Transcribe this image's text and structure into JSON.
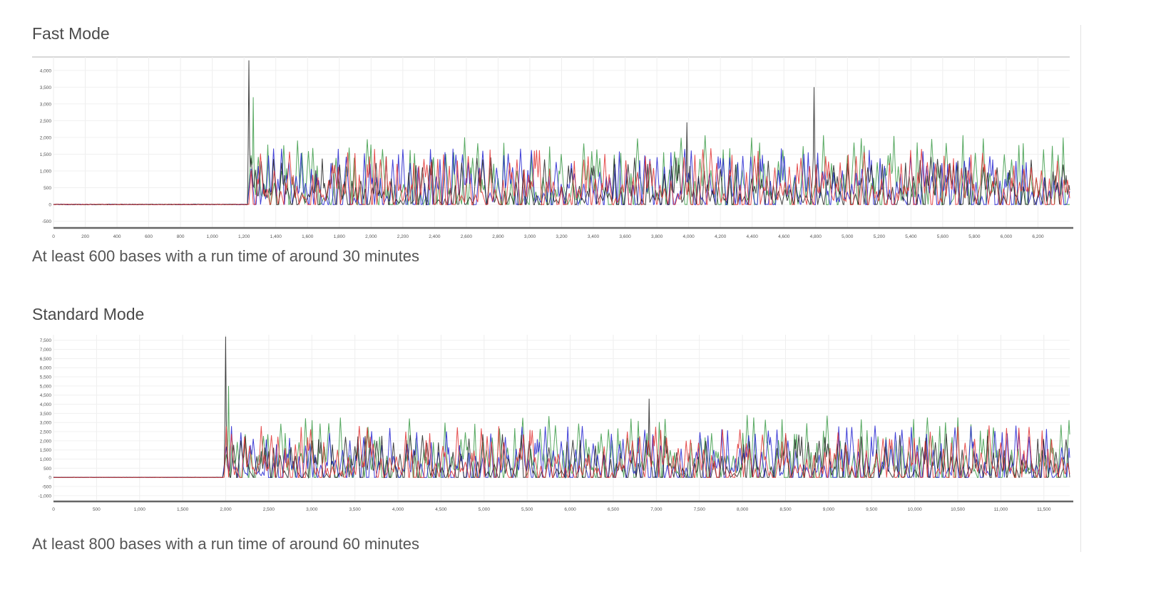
{
  "chart_data": [
    {
      "type": "line",
      "title": "Fast Mode",
      "caption": "At least 600 bases with a run time of around 30 minutes",
      "xlim": [
        0,
        6400
      ],
      "ylim": [
        -700,
        4400
      ],
      "xticks": [
        0,
        200,
        400,
        600,
        800,
        1000,
        1200,
        1400,
        1600,
        1800,
        2000,
        2200,
        2400,
        2600,
        2800,
        3000,
        3200,
        3400,
        3600,
        3800,
        4000,
        4200,
        4400,
        4600,
        4800,
        5000,
        5200,
        5400,
        5600,
        5800,
        6000,
        6200
      ],
      "yticks": [
        -500,
        0,
        500,
        1000,
        1500,
        2000,
        2500,
        3000,
        3500,
        4000
      ],
      "grid": true,
      "series_colors": [
        "#3a9a45",
        "#2020d0",
        "#222222",
        "#e03030"
      ],
      "signal_onset_x": 1240,
      "baseline_y": 0,
      "typical_peak_range": [
        500,
        1800
      ],
      "notable_peaks": [
        {
          "x": 1231,
          "y": 4300,
          "color": "#222222"
        },
        {
          "x": 1260,
          "y": 3200,
          "color": "#3a9a45"
        },
        {
          "x": 4790,
          "y": 3500,
          "color": "#222222"
        },
        {
          "x": 3990,
          "y": 2450,
          "color": "#222222"
        }
      ]
    },
    {
      "type": "line",
      "title": "Standard Mode",
      "caption": "At least 800 bases with a run time of around 60 minutes",
      "xlim": [
        0,
        11800
      ],
      "ylim": [
        -1200,
        7800
      ],
      "xticks": [
        0,
        500,
        1000,
        1500,
        2000,
        2500,
        3000,
        3500,
        4000,
        4500,
        5000,
        5500,
        6000,
        6500,
        7000,
        7500,
        8000,
        8500,
        9000,
        9500,
        10000,
        10500,
        11000,
        11500
      ],
      "yticks": [
        -1000,
        -500,
        0,
        500,
        1000,
        1500,
        2000,
        2500,
        3000,
        3500,
        4000,
        4500,
        5000,
        5500,
        6000,
        6500,
        7000,
        7500
      ],
      "grid": true,
      "series_colors": [
        "#3a9a45",
        "#2020d0",
        "#222222",
        "#e03030"
      ],
      "signal_onset_x": 2000,
      "baseline_y": 0,
      "typical_peak_range": [
        800,
        3000
      ],
      "notable_peaks": [
        {
          "x": 2000,
          "y": 7700,
          "color": "#222222"
        },
        {
          "x": 2030,
          "y": 5000,
          "color": "#3a9a45"
        },
        {
          "x": 6920,
          "y": 4300,
          "color": "#222222"
        }
      ]
    }
  ]
}
